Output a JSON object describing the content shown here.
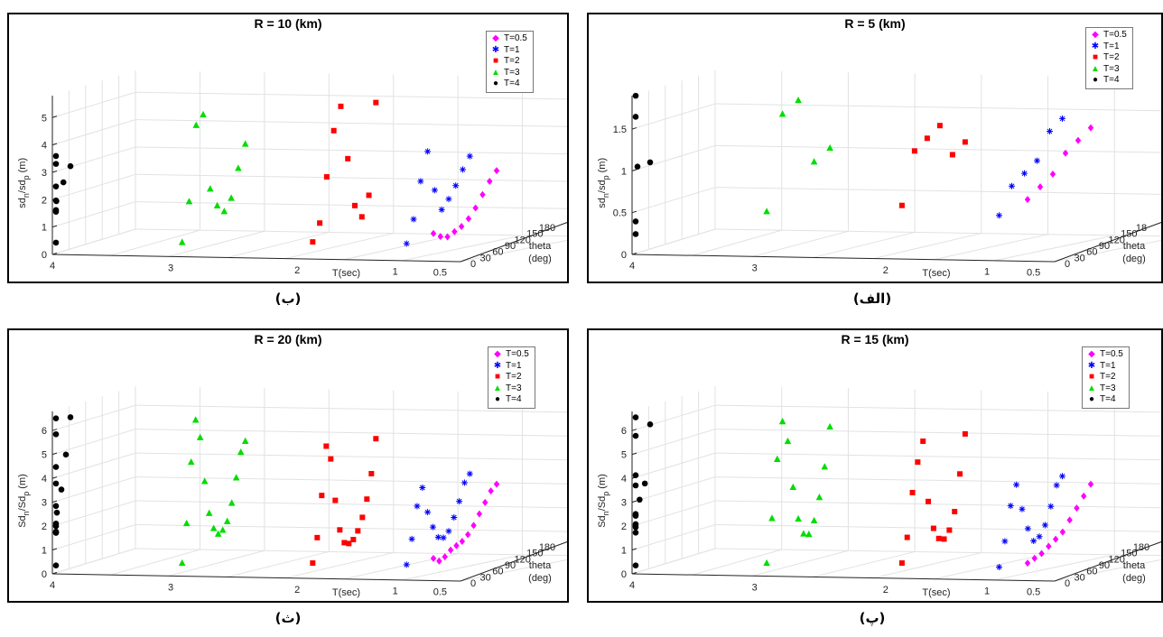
{
  "chart_data": [
    {
      "type": "scatter",
      "title": "R = 10 (km)",
      "caption": "(ب)",
      "ylabel_main": "sd",
      "ylabel_sub1": "n",
      "ylabel_mid": "/sd",
      "ylabel_sub2": "p",
      "ylabel_unit": " (m)",
      "xlabel": "T(sec)",
      "zlabel_line1": "theta",
      "zlabel_line2": "(deg)",
      "x_ticks": [
        "4",
        "3",
        "2",
        "1",
        "0.5"
      ],
      "theta_ticks": [
        "0",
        "30",
        "60",
        "90",
        "120",
        "150",
        "180"
      ],
      "y_ticks": [
        "0",
        "1",
        "2",
        "3",
        "4",
        "5"
      ],
      "ylim": [
        0,
        5.8
      ],
      "legend": [
        "T=0.5",
        "T=1",
        "T=2",
        "T=3",
        "T=4"
      ],
      "series": [
        {
          "name": "T=0.5",
          "color": "#ff00ff",
          "marker": "diamond",
          "values": [
            0.9,
            0.7,
            0.6,
            0.7,
            0.8,
            1.0,
            1.3,
            1.7,
            2.1,
            2.4
          ]
        },
        {
          "name": "T=1",
          "color": "#0000ff",
          "marker": "star",
          "values": [
            0.5,
            1.3,
            2.6,
            3.6,
            2.1,
            1.3,
            1.6,
            2.0,
            2.5,
            2.9
          ]
        },
        {
          "name": "T=2",
          "color": "#ff0000",
          "marker": "square",
          "values": [
            0.5,
            1.1,
            2.7,
            4.3,
            5.1,
            3.1,
            1.3,
            0.8,
            1.5,
            4.8
          ]
        },
        {
          "name": "T=3",
          "color": "#00dd00",
          "marker": "triangle",
          "values": [
            0.4,
            1.8,
            4.5,
            4.8,
            2.0,
            1.3,
            1.0,
            1.4,
            2.4,
            3.2
          ]
        },
        {
          "name": "T=4",
          "color": "#000000",
          "marker": "circle",
          "values": [
            0.3,
            1.4,
            3.0,
            3.2,
            2.0,
            1.4,
            0.9,
            1.2,
            1.8,
            2.3
          ]
        }
      ]
    },
    {
      "type": "scatter",
      "title": "R = 5 (km)",
      "caption": "(الف)",
      "ylabel_main": "sd",
      "ylabel_sub1": "n",
      "ylabel_mid": "/sd",
      "ylabel_sub2": "p",
      "ylabel_unit": " (m)",
      "xlabel": "T(sec)",
      "zlabel_line1": "theta",
      "zlabel_line2": "(deg)",
      "x_ticks": [
        "4",
        "3",
        "2",
        "1",
        "0.5"
      ],
      "theta_ticks": [
        "0",
        "30",
        "60",
        "90",
        "120",
        "150",
        "18"
      ],
      "y_ticks": [
        "0",
        "0.5",
        "1",
        "1.5"
      ],
      "ylim": [
        0,
        1.9
      ],
      "legend": [
        "T=0.5",
        "T=1",
        "T=2",
        "T=3",
        "T=4"
      ],
      "series": [
        {
          "name": "T=0.5",
          "color": "#ff00ff",
          "marker": "diamond",
          "values": [
            0.7,
            0.8,
            0.9,
            1.1,
            1.2,
            1.3
          ]
        },
        {
          "name": "T=1",
          "color": "#0000ff",
          "marker": "star",
          "values": [
            0.5,
            0.8,
            0.9,
            1.0,
            1.3,
            1.4
          ]
        },
        {
          "name": "T=2",
          "color": "#ff0000",
          "marker": "square",
          "values": [
            0.6,
            1.2,
            1.3,
            1.4,
            1.0,
            1.1
          ]
        },
        {
          "name": "T=3",
          "color": "#00dd00",
          "marker": "triangle",
          "values": [
            0.5,
            1.6,
            1.7,
            0.9,
            1.0
          ]
        },
        {
          "name": "T=4",
          "color": "#000000",
          "marker": "circle",
          "values": [
            0.2,
            0.3,
            1.5,
            1.7,
            0.8,
            0.8
          ]
        }
      ]
    },
    {
      "type": "scatter",
      "title": "R = 20 (km)",
      "caption": "(ث)",
      "ylabel_main": "Sd",
      "ylabel_sub1": "n",
      "ylabel_mid": "/Sd",
      "ylabel_sub2": "p",
      "ylabel_unit": " (m)",
      "xlabel": "T(sec)",
      "zlabel_line1": "theta",
      "zlabel_line2": "(deg)",
      "x_ticks": [
        "4",
        "3",
        "2",
        "1",
        "0.5"
      ],
      "theta_ticks": [
        "0",
        "30",
        "60",
        "90",
        "120",
        "150",
        "180"
      ],
      "y_ticks": [
        "0",
        "1",
        "2",
        "3",
        "4",
        "5",
        "6"
      ],
      "ylim": [
        0,
        6.8
      ],
      "legend": [
        "T=0.5",
        "T=1",
        "T=2",
        "T=3",
        "T=4"
      ],
      "series": [
        {
          "name": "T=0.5",
          "color": "#ff00ff",
          "marker": "diamond",
          "values": [
            0.8,
            0.6,
            0.7,
            0.9,
            1.0,
            1.1,
            1.3,
            1.6,
            2.0,
            2.4,
            2.8,
            3.0
          ]
        },
        {
          "name": "T=1",
          "color": "#0000ff",
          "marker": "star",
          "values": [
            0.5,
            1.5,
            2.8,
            3.5,
            2.4,
            1.7,
            1.2,
            1.1,
            1.3,
            1.8,
            2.4,
            3.1,
            3.4
          ]
        },
        {
          "name": "T=2",
          "color": "#ff0000",
          "marker": "square",
          "values": [
            0.5,
            1.5,
            3.2,
            5.2,
            4.6,
            2.8,
            1.5,
            0.9,
            0.8,
            0.9,
            1.2,
            1.7,
            2.4,
            3.4,
            4.8
          ]
        },
        {
          "name": "T=3",
          "color": "#00dd00",
          "marker": "triangle",
          "values": [
            0.4,
            2.0,
            4.5,
            6.2,
            5.4,
            3.5,
            2.1,
            1.4,
            1.1,
            1.2,
            1.5,
            2.2,
            3.2,
            4.2,
            4.6
          ]
        },
        {
          "name": "T=4",
          "color": "#000000",
          "marker": "circle",
          "values": [
            0.2,
            1.5,
            3.5,
            5.5,
            6.1,
            4.0,
            2.3,
            1.5,
            1.1,
            1.0,
            1.2,
            1.7,
            2.6,
            4.0,
            5.5
          ]
        }
      ]
    },
    {
      "type": "scatter",
      "title": "R = 15 (km)",
      "caption": "(پ)",
      "ylabel_main": "Sd",
      "ylabel_sub1": "n",
      "ylabel_mid": "/Sd",
      "ylabel_sub2": "p",
      "ylabel_unit": " (m)",
      "xlabel": "T(sec)",
      "zlabel_line1": "theta",
      "zlabel_line2": "(deg)",
      "x_ticks": [
        "4",
        "3",
        "2",
        "1",
        "0.5"
      ],
      "theta_ticks": [
        "0",
        "30",
        "60",
        "90",
        "120",
        "150",
        "180"
      ],
      "y_ticks": [
        "0",
        "1",
        "2",
        "3",
        "4",
        "5",
        "6"
      ],
      "ylim": [
        0,
        6.8
      ],
      "legend": [
        "T=0.5",
        "T=1",
        "T=2",
        "T=3",
        "T=4"
      ],
      "series": [
        {
          "name": "T=0.5",
          "color": "#ff00ff",
          "marker": "diamond",
          "values": [
            0.6,
            0.7,
            0.8,
            1.0,
            1.2,
            1.4,
            1.8,
            2.2,
            2.6,
            3.0
          ]
        },
        {
          "name": "T=1",
          "color": "#0000ff",
          "marker": "star",
          "values": [
            0.4,
            1.4,
            2.8,
            3.6,
            2.5,
            1.6,
            1.0,
            1.1,
            1.5,
            2.2,
            3.0,
            3.3
          ]
        },
        {
          "name": "T=2",
          "color": "#ff0000",
          "marker": "square",
          "values": [
            0.5,
            1.5,
            3.3,
            4.5,
            5.3,
            2.7,
            1.5,
            1.0,
            0.9,
            1.2,
            1.9,
            3.4,
            5.0
          ]
        },
        {
          "name": "T=3",
          "color": "#00dd00",
          "marker": "triangle",
          "values": [
            0.4,
            2.2,
            4.6,
            6.1,
            5.2,
            3.2,
            1.8,
            1.1,
            1.0,
            1.5,
            2.4,
            3.6,
            5.2
          ]
        },
        {
          "name": "T=4",
          "color": "#000000",
          "marker": "circle",
          "values": [
            0.2,
            1.5,
            3.4,
            5.4,
            6.1,
            3.6,
            1.9,
            1.4,
            1.2,
            1.6,
            2.2,
            2.8,
            5.2
          ]
        }
      ]
    }
  ]
}
